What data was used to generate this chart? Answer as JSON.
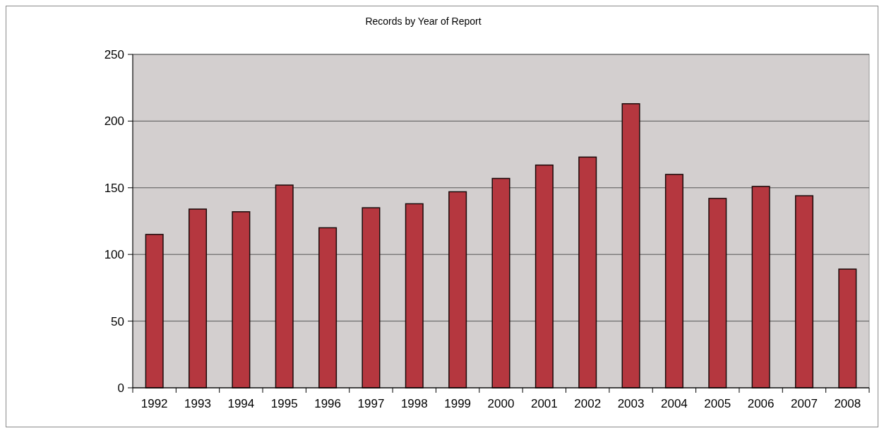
{
  "chart_data": {
    "type": "bar",
    "title": "Records by Year of Report",
    "categories": [
      "1992",
      "1993",
      "1994",
      "1995",
      "1996",
      "1997",
      "1998",
      "1999",
      "2000",
      "2001",
      "2002",
      "2003",
      "2004",
      "2005",
      "2006",
      "2007",
      "2008"
    ],
    "values": [
      115,
      134,
      132,
      152,
      120,
      135,
      138,
      147,
      157,
      167,
      173,
      213,
      160,
      142,
      151,
      144,
      89
    ],
    "color": "#b5373f",
    "ylim": [
      0,
      250
    ],
    "yticks": [
      0,
      50,
      100,
      150,
      200,
      250
    ],
    "grid": "y"
  }
}
